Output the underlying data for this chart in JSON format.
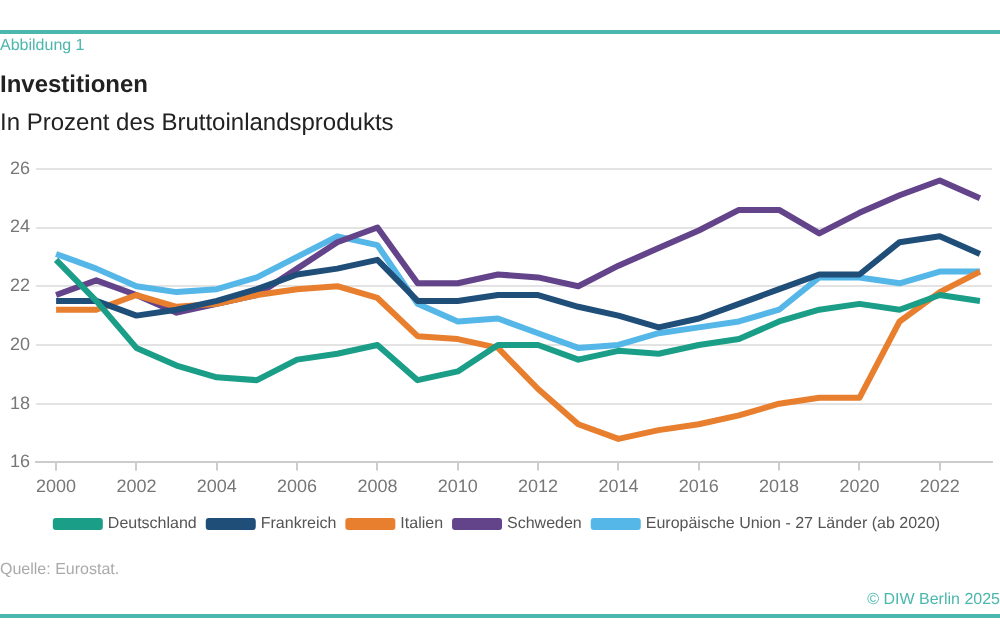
{
  "chart_data": {
    "type": "line",
    "title": "Investitionen",
    "subtitle": "In Prozent des Bruttoinlandsprodukts",
    "annotations": [
      "Abbildung 1",
      "Quelle: Eurostat.",
      "© DIW Berlin 2025"
    ],
    "x": [
      2000,
      2001,
      2002,
      2003,
      2004,
      2005,
      2006,
      2007,
      2008,
      2009,
      2010,
      2011,
      2012,
      2013,
      2014,
      2015,
      2016,
      2017,
      2018,
      2019,
      2020,
      2021,
      2022,
      2023
    ],
    "series": [
      {
        "name": "Deutschland",
        "color": "#1a9e87",
        "values": [
          22.9,
          21.5,
          19.9,
          19.3,
          18.9,
          18.8,
          19.5,
          19.7,
          20.0,
          18.8,
          19.1,
          20.0,
          20.0,
          19.5,
          19.8,
          19.7,
          20.0,
          20.2,
          20.8,
          21.2,
          21.4,
          21.2,
          21.7,
          21.5
        ]
      },
      {
        "name": "Frankreich",
        "color": "#1f4e79",
        "values": [
          21.5,
          21.5,
          21.0,
          21.2,
          21.5,
          21.9,
          22.4,
          22.6,
          22.9,
          21.5,
          21.5,
          21.7,
          21.7,
          21.3,
          21.0,
          20.6,
          20.9,
          21.4,
          21.9,
          22.4,
          22.4,
          23.5,
          23.7,
          23.1
        ]
      },
      {
        "name": "Italien",
        "color": "#e87f2f",
        "values": [
          21.2,
          21.2,
          21.7,
          21.3,
          21.4,
          21.7,
          21.9,
          22.0,
          21.6,
          20.3,
          20.2,
          19.9,
          18.5,
          17.3,
          16.8,
          17.1,
          17.3,
          17.6,
          18.0,
          18.2,
          18.2,
          20.8,
          21.8,
          22.5
        ]
      },
      {
        "name": "Schweden",
        "color": "#634389",
        "values": [
          21.7,
          22.2,
          21.7,
          21.1,
          21.4,
          21.7,
          22.6,
          23.5,
          24.0,
          22.1,
          22.1,
          22.4,
          22.3,
          22.0,
          22.7,
          23.3,
          23.9,
          24.6,
          24.6,
          23.8,
          24.5,
          25.1,
          25.6,
          25.0
        ]
      },
      {
        "name": "Europäische Union - 27 Länder (ab 2020)",
        "color": "#55b6e8",
        "values": [
          23.1,
          22.6,
          22.0,
          21.8,
          21.9,
          22.3,
          23.0,
          23.7,
          23.4,
          21.4,
          20.8,
          20.9,
          20.4,
          19.9,
          20.0,
          20.4,
          20.6,
          20.8,
          21.2,
          22.3,
          22.3,
          22.1,
          22.5,
          22.5
        ]
      }
    ],
    "xlim": [
      1999.5,
      2023.3
    ],
    "xticks": [
      2000,
      2002,
      2004,
      2006,
      2008,
      2010,
      2012,
      2014,
      2016,
      2018,
      2020,
      2022
    ],
    "ylim": [
      16,
      26
    ],
    "yticks": [
      16,
      18,
      20,
      22,
      24,
      26
    ],
    "grid": "y",
    "legend": "bottom",
    "marker": "none",
    "line_style": "solid"
  }
}
